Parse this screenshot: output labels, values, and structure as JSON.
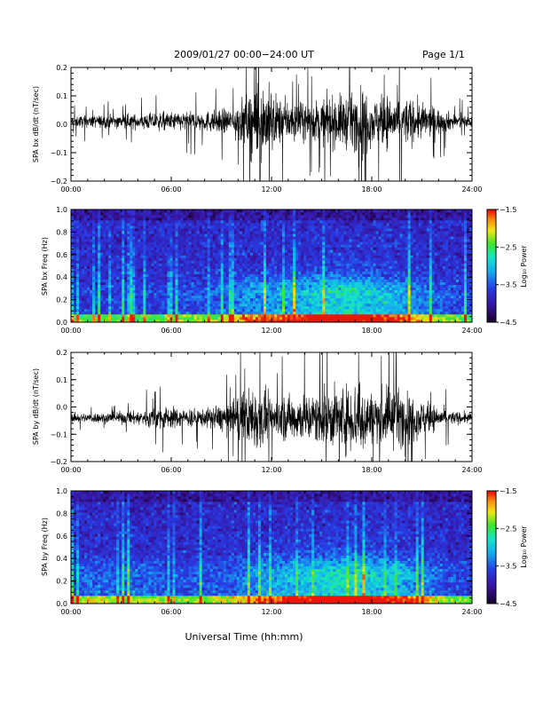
{
  "header": {
    "title": "2009/01/27  00:00−24:00 UT",
    "page": "Page 1/1"
  },
  "footer": {
    "xlabel": "Universal Time (hh:mm)"
  },
  "colors": {
    "trace": "#000000",
    "spectrogram_background": "#3a1fb0"
  },
  "chart_data": [
    {
      "type": "line",
      "id": "bx_dbdt",
      "ylabel": "SPA bx dB/dt (nT/sec)",
      "xlim": [
        0,
        24
      ],
      "ylim": [
        -0.2,
        0.2
      ],
      "yticks": [
        -0.2,
        -0.1,
        0.0,
        0.1,
        0.2
      ],
      "ytick_labels": [
        "−0.2",
        "−0.1",
        "0.0",
        "0.1",
        "0.2"
      ],
      "xticks": [
        0,
        6,
        12,
        18,
        24
      ],
      "xtick_labels": [
        "00:00",
        "06:00",
        "12:00",
        "18:00",
        "24:00"
      ],
      "grid": false,
      "envelope": {
        "hours": [
          0,
          2,
          4,
          5,
          6,
          8,
          9.5,
          10.5,
          11,
          11.8,
          12.5,
          14,
          15,
          16,
          17,
          17.5,
          18,
          19,
          20,
          21,
          22,
          23,
          24
        ],
        "amplitude": [
          0.03,
          0.035,
          0.04,
          0.05,
          0.05,
          0.055,
          0.07,
          0.14,
          0.22,
          0.2,
          0.12,
          0.1,
          0.12,
          0.14,
          0.15,
          0.2,
          0.12,
          0.14,
          0.13,
          0.1,
          0.07,
          0.04,
          0.03
        ]
      },
      "baseline": 0.01
    },
    {
      "type": "heatmap",
      "id": "bx_freq",
      "ylabel": "SPA bx Freq (Hz)",
      "xlim": [
        0,
        24
      ],
      "ylim": [
        0,
        1
      ],
      "yticks": [
        0.0,
        0.2,
        0.4,
        0.6,
        0.8,
        1.0
      ],
      "ytick_labels": [
        "0.0",
        "0.2",
        "0.4",
        "0.6",
        "0.8",
        "1.0"
      ],
      "xticks": [
        0,
        6,
        12,
        18,
        24
      ],
      "xtick_labels": [
        "00:00",
        "06:00",
        "12:00",
        "18:00",
        "24:00"
      ],
      "colorbar": {
        "label": "Log₁₀ Power",
        "range": [
          -4.5,
          -1.5
        ],
        "ticks": [
          -1.5,
          -2.5,
          -3.5,
          -4.5
        ],
        "tick_labels": [
          "−1.5",
          "−2.5",
          "−3.5",
          "−4.5"
        ]
      },
      "activity": {
        "hours": [
          0,
          3,
          6,
          9,
          10.5,
          12,
          13.5,
          15,
          16.5,
          18,
          19.5,
          21,
          22.5,
          24
        ],
        "level": [
          0.15,
          0.15,
          0.2,
          0.3,
          0.5,
          0.55,
          0.65,
          0.75,
          0.85,
          0.7,
          0.6,
          0.4,
          0.25,
          0.15
        ]
      }
    },
    {
      "type": "line",
      "id": "by_dbdt",
      "ylabel": "SPA by dB/dt (nT/sec)",
      "xlim": [
        0,
        24
      ],
      "ylim": [
        -0.2,
        0.2
      ],
      "yticks": [
        -0.2,
        -0.1,
        0.0,
        0.1,
        0.2
      ],
      "ytick_labels": [
        "−0.2",
        "−0.1",
        "0.0",
        "0.1",
        "0.2"
      ],
      "xticks": [
        0,
        6,
        12,
        18,
        24
      ],
      "xtick_labels": [
        "00:00",
        "06:00",
        "12:00",
        "18:00",
        "24:00"
      ],
      "grid": false,
      "envelope": {
        "hours": [
          0,
          2,
          4,
          5.5,
          6,
          8,
          9.5,
          10.5,
          11,
          12,
          13,
          14.5,
          15.5,
          16.5,
          17.3,
          18,
          19,
          20,
          21,
          22,
          23,
          24
        ],
        "amplitude": [
          0.025,
          0.03,
          0.04,
          0.07,
          0.06,
          0.05,
          0.09,
          0.15,
          0.2,
          0.11,
          0.13,
          0.14,
          0.17,
          0.18,
          0.22,
          0.14,
          0.18,
          0.15,
          0.1,
          0.06,
          0.035,
          0.03
        ]
      },
      "baseline": -0.04
    },
    {
      "type": "heatmap",
      "id": "by_freq",
      "ylabel": "SPA by Freq (Hz)",
      "xlim": [
        0,
        24
      ],
      "ylim": [
        0,
        1
      ],
      "yticks": [
        0.0,
        0.2,
        0.4,
        0.6,
        0.8,
        1.0
      ],
      "ytick_labels": [
        "0.0",
        "0.2",
        "0.4",
        "0.6",
        "0.8",
        "1.0"
      ],
      "xticks": [
        0,
        6,
        12,
        18,
        24
      ],
      "xtick_labels": [
        "00:00",
        "06:00",
        "12:00",
        "18:00",
        "24:00"
      ],
      "colorbar": {
        "label": "Log₁₀ Power",
        "range": [
          -4.5,
          -1.5
        ],
        "ticks": [
          -1.5,
          -2.5,
          -3.5,
          -4.5
        ],
        "tick_labels": [
          "−1.5",
          "−2.5",
          "−3.5",
          "−4.5"
        ]
      },
      "activity": {
        "hours": [
          0,
          1,
          3,
          5,
          6,
          9,
          10.5,
          12,
          13.5,
          15,
          16.5,
          18,
          19.5,
          21,
          22.5,
          24
        ],
        "level": [
          0.2,
          0.35,
          0.3,
          0.3,
          0.2,
          0.3,
          0.45,
          0.55,
          0.7,
          0.8,
          0.85,
          0.75,
          0.65,
          0.45,
          0.25,
          0.15
        ]
      }
    }
  ]
}
